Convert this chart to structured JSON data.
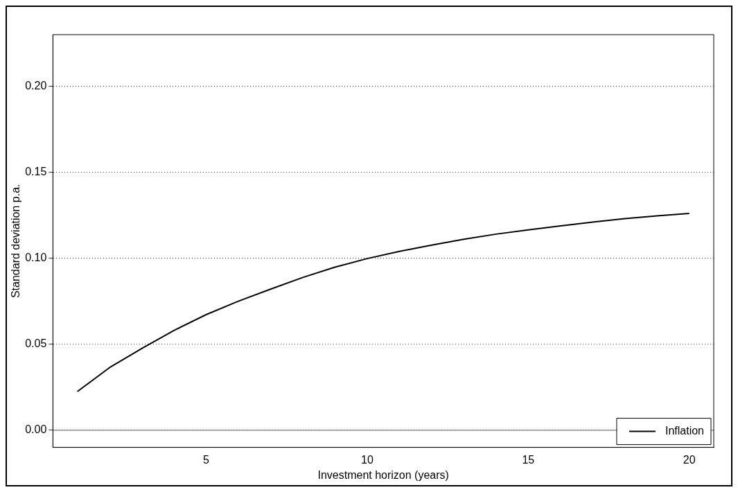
{
  "chart_data": {
    "type": "line",
    "xlabel": "Investment horizon (years)",
    "ylabel": "Standard deviation p.a.",
    "x": [
      1,
      2,
      3,
      4,
      5,
      6,
      7,
      8,
      9,
      10,
      11,
      12,
      13,
      14,
      15,
      16,
      17,
      18,
      19,
      20
    ],
    "series": [
      {
        "name": "Inflation",
        "color": "#000000",
        "values": [
          0.0225,
          0.0364,
          0.0475,
          0.058,
          0.0672,
          0.075,
          0.082,
          0.0888,
          0.0948,
          0.0998,
          0.104,
          0.1076,
          0.111,
          0.114,
          0.1165,
          0.1188,
          0.121,
          0.123,
          0.1246,
          0.126
        ]
      }
    ],
    "xlim": [
      0.24,
      20.76
    ],
    "xticks": [
      5,
      10,
      15,
      20
    ],
    "ylim": [
      -0.01,
      0.23
    ],
    "yticks": [
      {
        "value": 0,
        "label": "0.00"
      },
      {
        "value": 0.05,
        "label": "0.05"
      },
      {
        "value": 0.1,
        "label": "0.10"
      },
      {
        "value": 0.15,
        "label": "0.15"
      },
      {
        "value": 0.2,
        "label": "0.20"
      }
    ],
    "grid": "y",
    "line_style": "solid",
    "marker": "none",
    "legend": "bottom right",
    "ref_lines": [
      {
        "axis": "y",
        "value": 0,
        "color": "#808080",
        "line_style": "solid"
      }
    ]
  }
}
